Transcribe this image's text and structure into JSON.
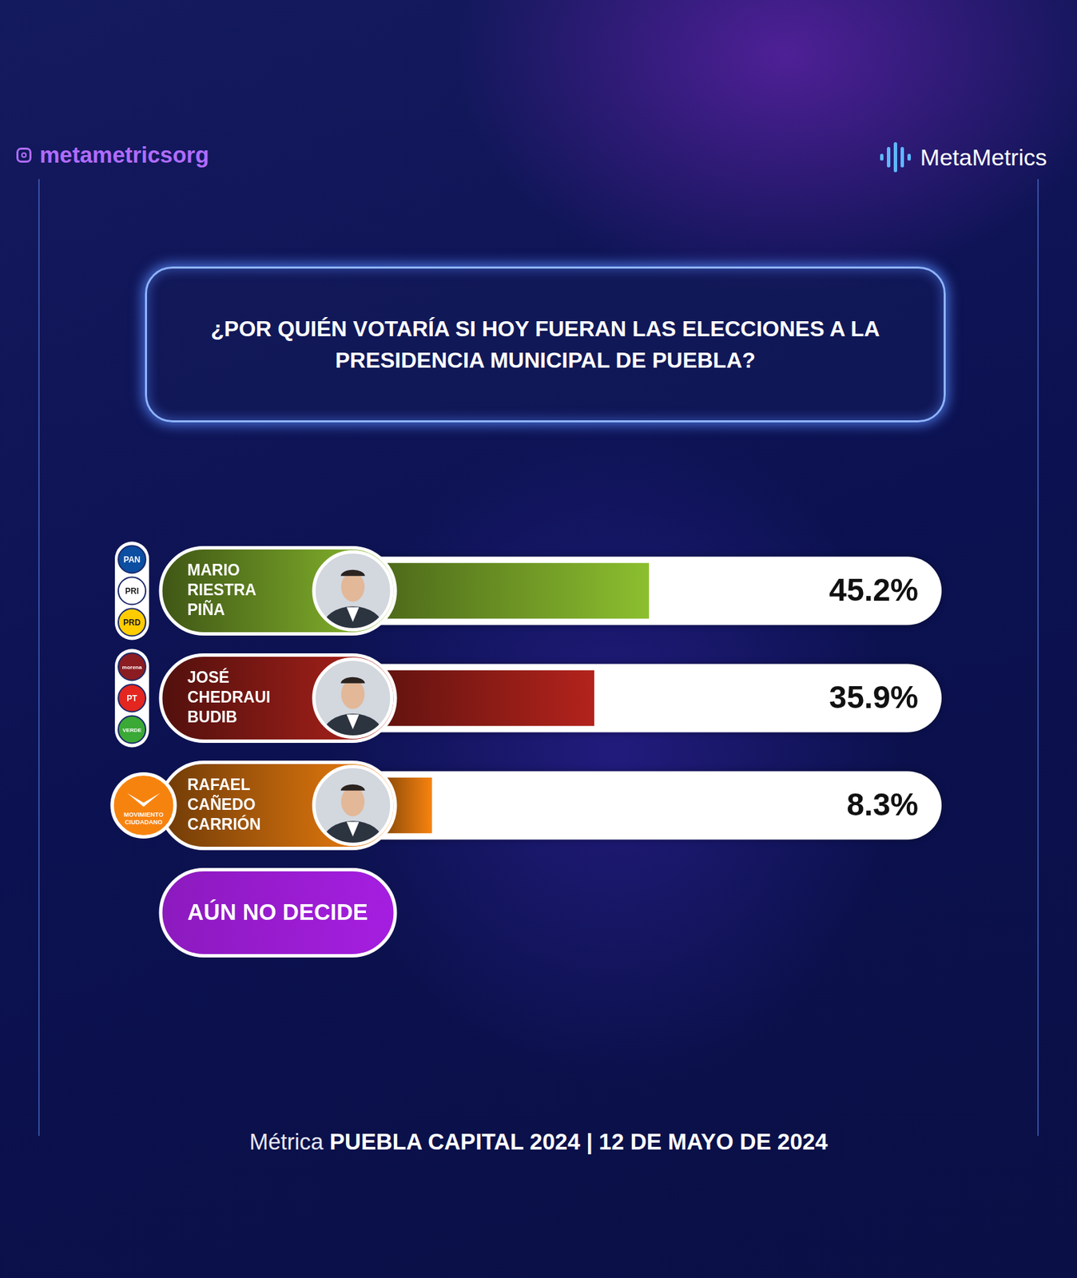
{
  "header": {
    "handle": "metametricsorg",
    "brand": "MetaMetrics"
  },
  "chart_data": {
    "type": "bar",
    "orientation": "horizontal",
    "title": "¿POR QUIÉN VOTARÍA SI HOY FUERAN LAS ELECCIONES A LA PRESIDENCIA MUNICIPAL DE PUEBLA?",
    "categories": [
      "MARIO RIESTRA PIÑA",
      "JOSÉ CHEDRAUI BUDIB",
      "RAFAEL CAÑEDO CARRIÓN",
      "AÚN NO DECIDE"
    ],
    "values": [
      45.2,
      35.9,
      8.3,
      null
    ],
    "value_labels": [
      "45.2%",
      "35.9%",
      "8.3%",
      null
    ],
    "colors": [
      "#8cbf2f",
      "#b3231c",
      "#f7830f",
      "#a51ee0"
    ],
    "parties": [
      [
        {
          "name": "PAN",
          "color": "#0b4ea2"
        },
        {
          "name": "PRI",
          "color": "#ffffff"
        },
        {
          "name": "PRD",
          "color": "#ffcc00"
        }
      ],
      [
        {
          "name": "morena",
          "color": "#8b1c22"
        },
        {
          "name": "PT",
          "color": "#e3261f"
        },
        {
          "name": "VERDE",
          "color": "#3aa935"
        }
      ],
      [
        {
          "name": "MOVIMIENTO CIUDADANO",
          "color": "#f7830f"
        }
      ],
      []
    ],
    "xlim": [
      0,
      95
    ],
    "tick_labels": false,
    "grid": false,
    "data_labels": true
  },
  "footer": {
    "prefix": "Métrica",
    "text": "PUEBLA CAPITAL 2024 | 12 DE MAYO DE 2024"
  }
}
